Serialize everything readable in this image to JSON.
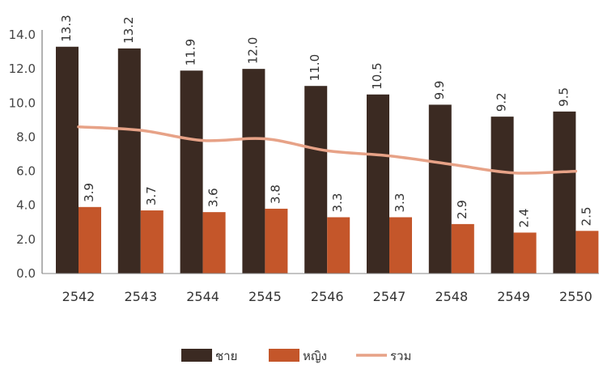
{
  "chart_data": {
    "type": "bar",
    "categories": [
      "2542",
      "2543",
      "2544",
      "2545",
      "2546",
      "2547",
      "2548",
      "2549",
      "2550"
    ],
    "series": [
      {
        "name": "ชาย",
        "type": "bar",
        "color": "#3b2a22",
        "values": [
          13.3,
          13.2,
          11.9,
          12.0,
          11.0,
          10.5,
          9.9,
          9.2,
          9.5
        ],
        "labels": [
          "13.3",
          "13.2",
          "11.9",
          "12.0",
          "11.0",
          "10.5",
          "9.9",
          "9.2",
          "9.5"
        ]
      },
      {
        "name": "หญิง",
        "type": "bar",
        "color": "#c4562a",
        "values": [
          3.9,
          3.7,
          3.6,
          3.8,
          3.3,
          3.3,
          2.9,
          2.4,
          2.5
        ],
        "labels": [
          "3.9",
          "3.7",
          "3.6",
          "3.8",
          "3.3",
          "3.3",
          "2.9",
          "2.4",
          "2.5"
        ]
      },
      {
        "name": "รวม",
        "type": "line",
        "color": "#e7a287",
        "values": [
          8.6,
          8.4,
          7.8,
          7.9,
          7.2,
          6.9,
          6.4,
          5.9,
          6.0
        ]
      }
    ],
    "yticks": [
      "0.0",
      "2.0",
      "4.0",
      "6.0",
      "8.0",
      "10.0",
      "12.0",
      "14.0"
    ],
    "ylim": [
      0,
      14
    ],
    "grid": false,
    "legend_position": "bottom-center"
  }
}
